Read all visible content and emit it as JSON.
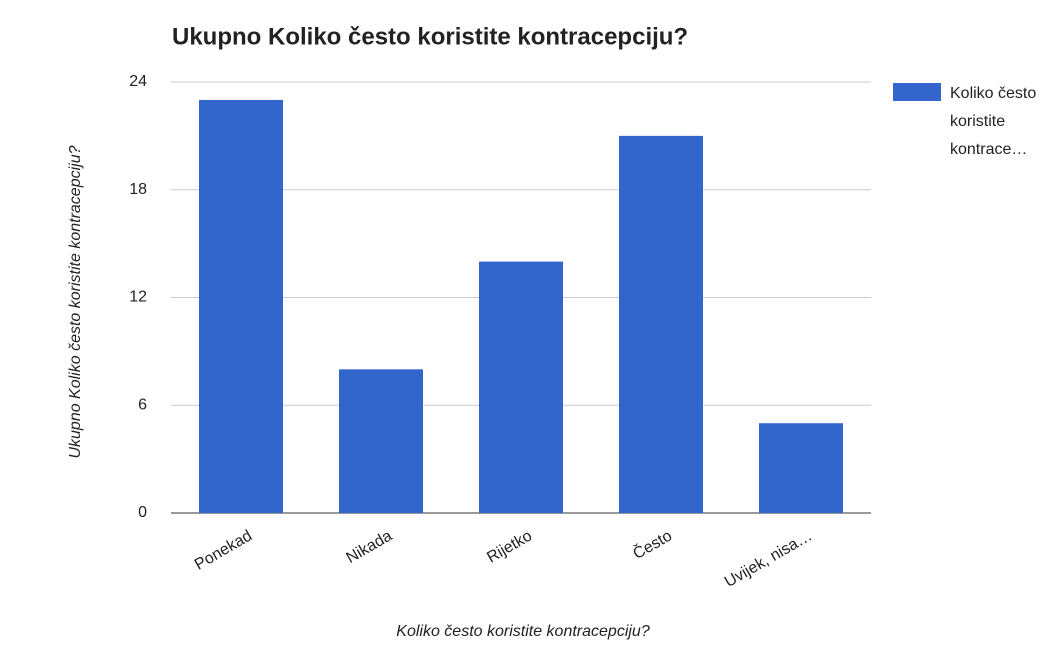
{
  "chart_data": {
    "type": "bar",
    "title": "Ukupno Koliko često koristite kontracepciju?",
    "x_label": "Koliko često koristite kontracepciju?",
    "y_label": "Ukupno Koliko često koristite kontracepciju?",
    "categories": [
      "Ponekad",
      "Nikada",
      "Rijetko",
      "Često",
      "Uvijek, nisa…"
    ],
    "series": [
      {
        "name": "Koliko često koristite kontrace…",
        "color": "#3366cc",
        "values": [
          23,
          8,
          14,
          21,
          5
        ]
      }
    ],
    "ylim": [
      0,
      24
    ],
    "yticks": [
      0,
      6,
      12,
      18,
      24
    ],
    "grid": true,
    "legend": "right"
  }
}
